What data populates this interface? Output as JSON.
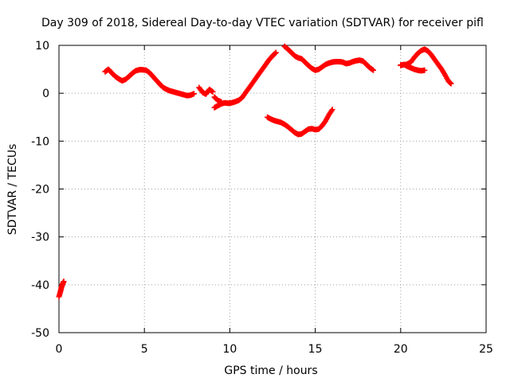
{
  "chart_data": {
    "type": "scatter",
    "title": "Day 309 of 2018, Sidereal Day-to-day VTEC variation (SDTVAR) for receiver pifl",
    "xlabel": "GPS time / hours",
    "ylabel": "SDTVAR / TECUs",
    "xlim": [
      0,
      25
    ],
    "ylim": [
      -50,
      10
    ],
    "xticks": [
      0,
      5,
      10,
      15,
      20,
      25
    ],
    "yticks": [
      -50,
      -40,
      -30,
      -20,
      -10,
      0,
      10
    ],
    "grid": true,
    "marker": "plus",
    "color": "#ff0000",
    "series": [
      {
        "values": [
          [
            0.0,
            -42.5
          ],
          [
            0.08,
            -41.5
          ],
          [
            0.15,
            -40.5
          ],
          [
            0.22,
            -39.8
          ],
          [
            0.28,
            -39.3
          ]
        ]
      },
      {
        "values": [
          [
            2.7,
            4.5
          ],
          [
            2.9,
            5.0
          ],
          [
            3.1,
            4.2
          ],
          [
            3.3,
            3.5
          ],
          [
            3.5,
            3.0
          ],
          [
            3.7,
            2.6
          ],
          [
            3.9,
            2.9
          ],
          [
            4.1,
            3.5
          ],
          [
            4.3,
            4.2
          ],
          [
            4.5,
            4.7
          ],
          [
            4.7,
            4.9
          ],
          [
            4.9,
            4.9
          ],
          [
            5.1,
            4.8
          ],
          [
            5.3,
            4.3
          ],
          [
            5.5,
            3.5
          ],
          [
            5.7,
            2.7
          ],
          [
            5.9,
            1.9
          ],
          [
            6.1,
            1.2
          ],
          [
            6.3,
            0.8
          ],
          [
            6.5,
            0.5
          ],
          [
            6.7,
            0.3
          ],
          [
            6.9,
            0.1
          ],
          [
            7.1,
            -0.1
          ],
          [
            7.3,
            -0.3
          ],
          [
            7.5,
            -0.5
          ],
          [
            7.7,
            -0.4
          ],
          [
            7.9,
            -0.1
          ]
        ]
      },
      {
        "values": [
          [
            8.2,
            1.2
          ],
          [
            8.4,
            0.2
          ],
          [
            8.6,
            -0.2
          ],
          [
            8.8,
            0.8
          ],
          [
            9.0,
            0.3
          ]
        ]
      },
      {
        "values": [
          [
            9.1,
            -3.0
          ],
          [
            9.3,
            -2.6
          ],
          [
            9.5,
            -2.2
          ],
          [
            9.7,
            -2.0
          ],
          [
            9.9,
            -2.1
          ],
          [
            10.1,
            -2.0
          ],
          [
            10.3,
            -1.8
          ],
          [
            10.5,
            -1.5
          ],
          [
            10.7,
            -1.0
          ],
          [
            10.9,
            0.0
          ],
          [
            11.1,
            1.0
          ],
          [
            11.3,
            2.0
          ],
          [
            11.5,
            3.0
          ],
          [
            11.7,
            4.0
          ],
          [
            11.9,
            5.0
          ],
          [
            12.1,
            6.0
          ],
          [
            12.3,
            7.0
          ],
          [
            12.5,
            7.8
          ],
          [
            12.7,
            8.5
          ]
        ]
      },
      {
        "values": [
          [
            9.1,
            -0.8
          ],
          [
            9.3,
            -1.5
          ],
          [
            9.5,
            -1.8
          ]
        ]
      },
      {
        "values": [
          [
            13.2,
            9.8
          ],
          [
            13.4,
            9.2
          ],
          [
            13.6,
            8.5
          ],
          [
            13.8,
            7.8
          ],
          [
            14.0,
            7.4
          ],
          [
            14.2,
            7.2
          ],
          [
            14.4,
            6.5
          ],
          [
            14.6,
            5.8
          ],
          [
            14.8,
            5.2
          ],
          [
            15.0,
            4.8
          ],
          [
            15.2,
            5.0
          ],
          [
            15.4,
            5.5
          ],
          [
            15.6,
            6.0
          ],
          [
            15.8,
            6.3
          ],
          [
            16.0,
            6.5
          ],
          [
            16.2,
            6.6
          ],
          [
            16.4,
            6.6
          ],
          [
            16.6,
            6.5
          ],
          [
            16.8,
            6.2
          ],
          [
            17.0,
            6.3
          ],
          [
            17.2,
            6.6
          ],
          [
            17.4,
            6.8
          ],
          [
            17.6,
            6.9
          ],
          [
            17.8,
            6.7
          ],
          [
            18.0,
            6.0
          ],
          [
            18.2,
            5.3
          ],
          [
            18.4,
            4.8
          ]
        ]
      },
      {
        "values": [
          [
            12.2,
            -5.0
          ],
          [
            12.4,
            -5.4
          ],
          [
            12.6,
            -5.7
          ],
          [
            12.8,
            -5.9
          ],
          [
            13.0,
            -6.1
          ],
          [
            13.2,
            -6.5
          ],
          [
            13.4,
            -7.0
          ],
          [
            13.6,
            -7.6
          ],
          [
            13.8,
            -8.2
          ],
          [
            14.0,
            -8.6
          ],
          [
            14.2,
            -8.5
          ],
          [
            14.4,
            -8.0
          ],
          [
            14.6,
            -7.5
          ],
          [
            14.8,
            -7.4
          ],
          [
            15.0,
            -7.6
          ],
          [
            15.2,
            -7.5
          ],
          [
            15.4,
            -6.8
          ],
          [
            15.6,
            -5.8
          ],
          [
            15.8,
            -4.5
          ],
          [
            16.0,
            -3.4
          ]
        ]
      },
      {
        "values": [
          [
            20.0,
            5.8
          ],
          [
            20.2,
            6.0
          ],
          [
            20.4,
            5.6
          ],
          [
            20.6,
            5.3
          ],
          [
            20.8,
            5.0
          ],
          [
            21.0,
            4.8
          ],
          [
            21.2,
            4.7
          ],
          [
            21.4,
            4.8
          ]
        ]
      },
      {
        "values": [
          [
            20.0,
            5.9
          ],
          [
            20.3,
            6.0
          ],
          [
            20.6,
            6.5
          ],
          [
            20.8,
            7.5
          ],
          [
            21.0,
            8.3
          ],
          [
            21.2,
            8.9
          ],
          [
            21.4,
            9.2
          ],
          [
            21.6,
            8.8
          ],
          [
            21.8,
            8.0
          ],
          [
            22.0,
            7.0
          ],
          [
            22.2,
            6.0
          ],
          [
            22.4,
            5.0
          ],
          [
            22.6,
            3.8
          ],
          [
            22.8,
            2.5
          ],
          [
            22.95,
            2.0
          ]
        ]
      }
    ]
  }
}
